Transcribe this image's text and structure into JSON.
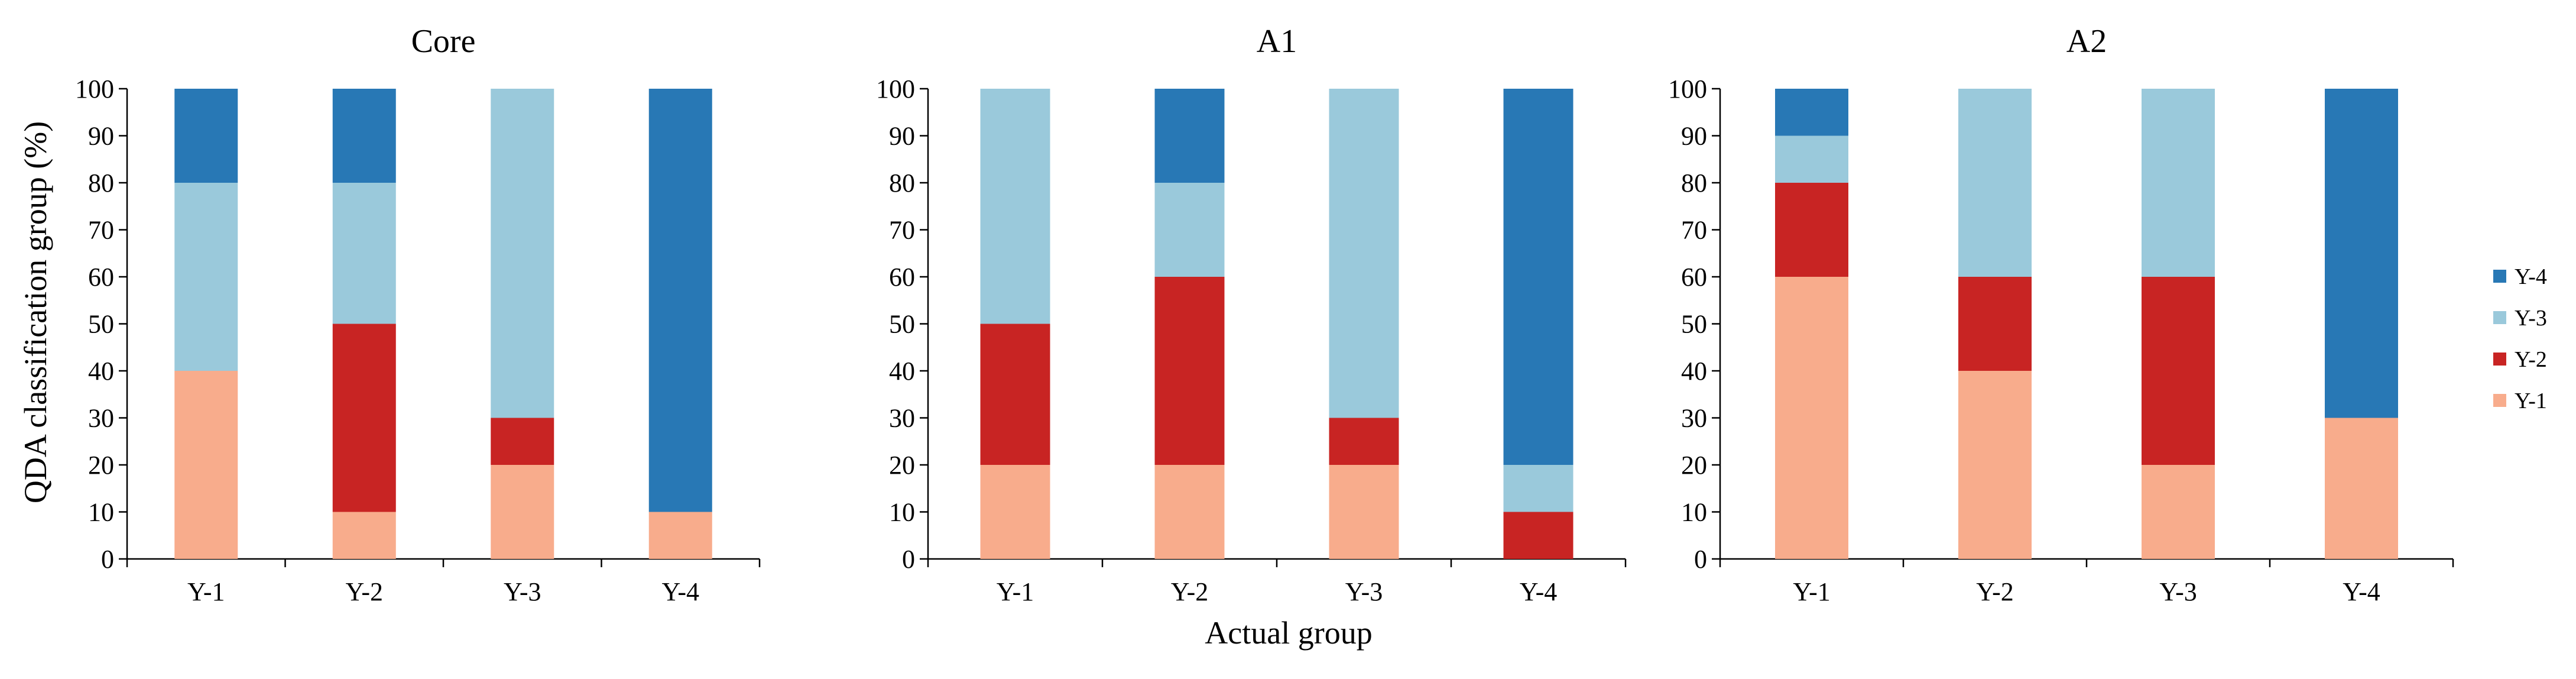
{
  "chart_data": {
    "type": "bar",
    "stacked": true,
    "layout": "three stacked-percentage bar panels side by side with a shared legend on the right",
    "ylabel": "QDA classification group (%)",
    "xlabel": "Actual group",
    "ylim": [
      0,
      100
    ],
    "ytick_step": 10,
    "grid": false,
    "legend_position": "right",
    "legend_order_top_to_bottom": [
      "Y-4",
      "Y-3",
      "Y-2",
      "Y-1"
    ],
    "series_colors": {
      "Y-1": "#f8ac8c",
      "Y-2": "#c82423",
      "Y-3": "#9ac9db",
      "Y-4": "#2878b5"
    },
    "series_order_bottom_to_top": [
      "Y-1",
      "Y-2",
      "Y-3",
      "Y-4"
    ],
    "panels": [
      {
        "title": "Core",
        "categories": [
          "Y-1",
          "Y-2",
          "Y-3",
          "Y-4"
        ],
        "series": [
          {
            "name": "Y-1",
            "values": [
              40,
              10,
              20,
              10
            ]
          },
          {
            "name": "Y-2",
            "values": [
              0,
              40,
              10,
              0
            ]
          },
          {
            "name": "Y-3",
            "values": [
              40,
              30,
              70,
              0
            ]
          },
          {
            "name": "Y-4",
            "values": [
              20,
              20,
              0,
              90
            ]
          }
        ]
      },
      {
        "title": "A1",
        "categories": [
          "Y-1",
          "Y-2",
          "Y-3",
          "Y-4"
        ],
        "series": [
          {
            "name": "Y-1",
            "values": [
              20,
              20,
              20,
              0
            ]
          },
          {
            "name": "Y-2",
            "values": [
              30,
              40,
              10,
              10
            ]
          },
          {
            "name": "Y-3",
            "values": [
              50,
              20,
              70,
              10
            ]
          },
          {
            "name": "Y-4",
            "values": [
              0,
              20,
              0,
              80
            ]
          }
        ]
      },
      {
        "title": "A2",
        "categories": [
          "Y-1",
          "Y-2",
          "Y-3",
          "Y-4"
        ],
        "series": [
          {
            "name": "Y-1",
            "values": [
              60,
              40,
              20,
              30
            ]
          },
          {
            "name": "Y-2",
            "values": [
              20,
              20,
              40,
              0
            ]
          },
          {
            "name": "Y-3",
            "values": [
              10,
              40,
              40,
              0
            ]
          },
          {
            "name": "Y-4",
            "values": [
              10,
              0,
              0,
              70
            ]
          }
        ]
      }
    ]
  }
}
